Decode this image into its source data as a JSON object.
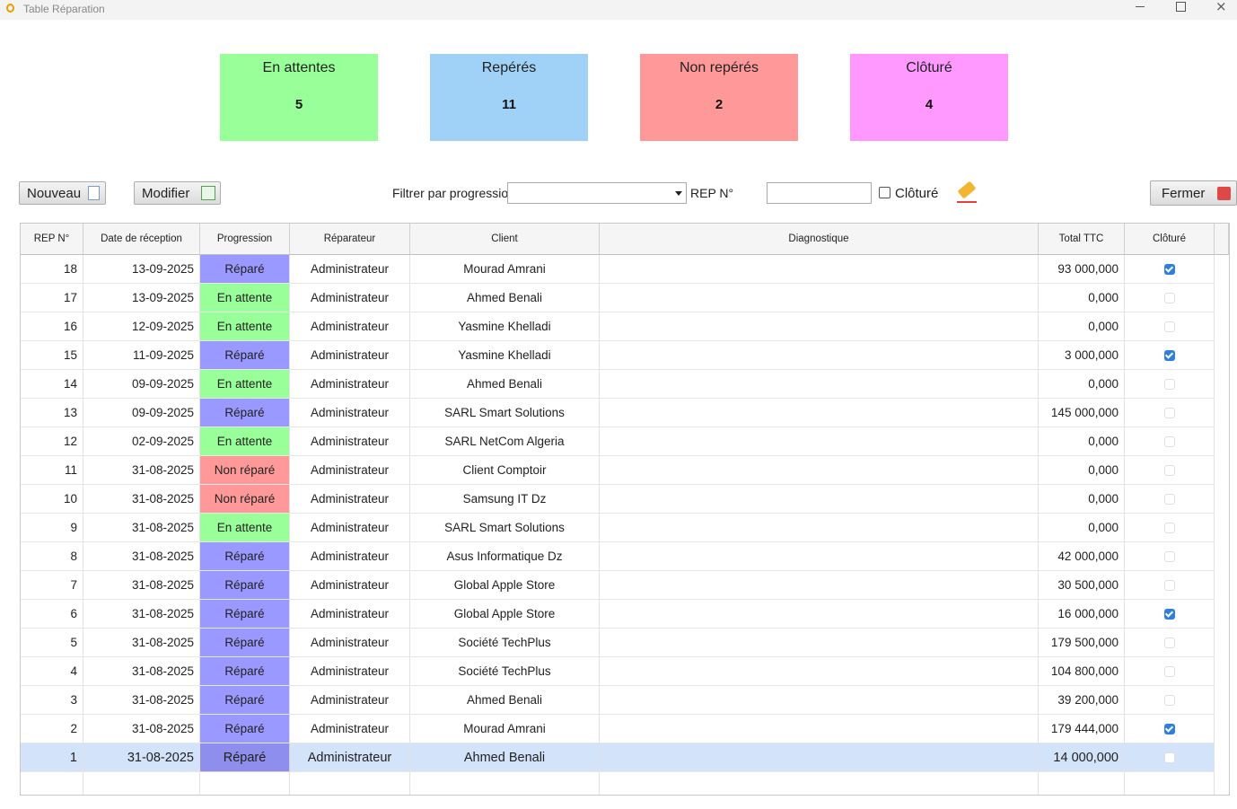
{
  "window": {
    "title": "Table Réparation"
  },
  "summary": [
    {
      "label": "En attentes",
      "count": 5,
      "color": "#99ff99"
    },
    {
      "label": "Repérés",
      "count": 11,
      "color": "#a0d2f8"
    },
    {
      "label": "Non repérés",
      "count": 2,
      "color": "#ff9999"
    },
    {
      "label": "Clôturé",
      "count": 4,
      "color": "#ff99ff"
    }
  ],
  "toolbar": {
    "new": "Nouveau",
    "edit": "Modifier",
    "filter_label": "Filtrer par progression",
    "rep_label": "REP N°",
    "closed_label": "Clôturé",
    "close": "Fermer"
  },
  "table": {
    "columns": [
      "REP N°",
      "Date de réception",
      "Progression",
      "Réparateur",
      "Client",
      "Diagnostique",
      "Total TTC",
      "Clôturé"
    ],
    "selected_index": 17,
    "rows": [
      {
        "rep": 18,
        "date": "13-09-2025",
        "progression": "Réparé",
        "progression_color": "#9999ff",
        "reparateur": "Administrateur",
        "client": "Mourad Amrani",
        "total": "93 000,000",
        "cloture": true
      },
      {
        "rep": 17,
        "date": "13-09-2025",
        "progression": "En attente",
        "progression_color": "#99ff99",
        "reparateur": "Administrateur",
        "client": "Ahmed Benali",
        "total": "0,000",
        "cloture": false
      },
      {
        "rep": 16,
        "date": "12-09-2025",
        "progression": "En attente",
        "progression_color": "#99ff99",
        "reparateur": "Administrateur",
        "client": "Yasmine Khelladi",
        "total": "0,000",
        "cloture": false
      },
      {
        "rep": 15,
        "date": "11-09-2025",
        "progression": "Réparé",
        "progression_color": "#9999ff",
        "reparateur": "Administrateur",
        "client": "Yasmine Khelladi",
        "total": "3 000,000",
        "cloture": true
      },
      {
        "rep": 14,
        "date": "09-09-2025",
        "progression": "En attente",
        "progression_color": "#99ff99",
        "reparateur": "Administrateur",
        "client": "Ahmed Benali",
        "total": "0,000",
        "cloture": false
      },
      {
        "rep": 13,
        "date": "09-09-2025",
        "progression": "Réparé",
        "progression_color": "#9999ff",
        "reparateur": "Administrateur",
        "client": "SARL Smart Solutions",
        "total": "145 000,000",
        "cloture": false
      },
      {
        "rep": 12,
        "date": "02-09-2025",
        "progression": "En attente",
        "progression_color": "#99ff99",
        "reparateur": "Administrateur",
        "client": "SARL NetCom Algeria",
        "total": "0,000",
        "cloture": false
      },
      {
        "rep": 11,
        "date": "31-08-2025",
        "progression": "Non réparé",
        "progression_color": "#ff9999",
        "reparateur": "Administrateur",
        "client": "Client Comptoir",
        "total": "0,000",
        "cloture": false
      },
      {
        "rep": 10,
        "date": "31-08-2025",
        "progression": "Non réparé",
        "progression_color": "#ff9999",
        "reparateur": "Administrateur",
        "client": "Samsung IT Dz",
        "total": "0,000",
        "cloture": false
      },
      {
        "rep": 9,
        "date": "31-08-2025",
        "progression": "En attente",
        "progression_color": "#99ff99",
        "reparateur": "Administrateur",
        "client": "SARL Smart Solutions",
        "total": "0,000",
        "cloture": false
      },
      {
        "rep": 8,
        "date": "31-08-2025",
        "progression": "Réparé",
        "progression_color": "#9999ff",
        "reparateur": "Administrateur",
        "client": "Asus Informatique Dz",
        "total": "42 000,000",
        "cloture": false
      },
      {
        "rep": 7,
        "date": "31-08-2025",
        "progression": "Réparé",
        "progression_color": "#9999ff",
        "reparateur": "Administrateur",
        "client": "Global Apple Store",
        "total": "30 500,000",
        "cloture": false
      },
      {
        "rep": 6,
        "date": "31-08-2025",
        "progression": "Réparé",
        "progression_color": "#9999ff",
        "reparateur": "Administrateur",
        "client": "Global Apple Store",
        "total": "16 000,000",
        "cloture": true
      },
      {
        "rep": 5,
        "date": "31-08-2025",
        "progression": "Réparé",
        "progression_color": "#9999ff",
        "reparateur": "Administrateur",
        "client": "Société TechPlus",
        "total": "179 500,000",
        "cloture": false
      },
      {
        "rep": 4,
        "date": "31-08-2025",
        "progression": "Réparé",
        "progression_color": "#9999ff",
        "reparateur": "Administrateur",
        "client": "Société TechPlus",
        "total": "104 800,000",
        "cloture": false
      },
      {
        "rep": 3,
        "date": "31-08-2025",
        "progression": "Réparé",
        "progression_color": "#9999ff",
        "reparateur": "Administrateur",
        "client": "Ahmed Benali",
        "total": "39 200,000",
        "cloture": false
      },
      {
        "rep": 2,
        "date": "31-08-2025",
        "progression": "Réparé",
        "progression_color": "#9999ff",
        "reparateur": "Administrateur",
        "client": "Mourad Amrani",
        "total": "179 444,000",
        "cloture": true
      },
      {
        "rep": 1,
        "date": "31-08-2025",
        "progression": "Réparé",
        "progression_color": "#9999ff",
        "reparateur": "Administrateur",
        "client": "Ahmed Benali",
        "total": "14 000,000",
        "cloture": false
      }
    ]
  }
}
